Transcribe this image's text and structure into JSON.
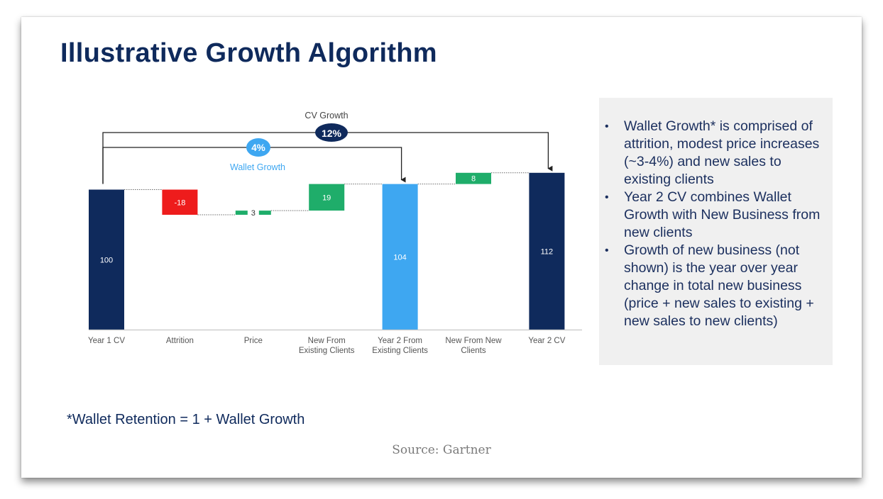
{
  "slide": {
    "title": "Illustrative Growth Algorithm",
    "footnote": "*Wallet Retention = 1 + Wallet Growth",
    "source": "Source: Gartner"
  },
  "notes": [
    "Wallet Growth* is comprised of attrition, modest price increases (~3-4%) and new sales to existing clients",
    "Year 2 CV combines Wallet Growth with New Business from new clients",
    "Growth of new business (not shown) is the year over year change in total new business (price + new sales to existing + new sales to new clients)"
  ],
  "colors": {
    "navy": "#0f2a5c",
    "light_blue": "#3ea7f1",
    "red": "#ee1c1c",
    "green": "#1fad6a",
    "note_bg": "#f0f0f0"
  },
  "chart_data": {
    "type": "bar",
    "subtype": "waterfall",
    "categories": [
      "Year 1 CV",
      "Attrition",
      "Price",
      "New From Existing Clients",
      "Year 2 From Existing Clients",
      "New From New Clients",
      "Year 2 CV"
    ],
    "values": [
      100,
      -18,
      3,
      19,
      104,
      8,
      112
    ],
    "labels": [
      "100",
      "-18",
      "3",
      "19",
      "104",
      "8",
      "112"
    ],
    "kinds": [
      "total",
      "delta",
      "delta",
      "delta",
      "total",
      "delta",
      "total"
    ],
    "colors": [
      "#0f2a5c",
      "#ee1c1c",
      "#1fad6a",
      "#1fad6a",
      "#3ea7f1",
      "#1fad6a",
      "#0f2a5c"
    ],
    "annotations": [
      {
        "label": "CV Growth",
        "value": "12%",
        "from": "Year 1 CV",
        "to": "Year 2 CV"
      },
      {
        "label": "Wallet Growth",
        "value": "4%",
        "from": "Year 1 CV",
        "to": "Year 2 From Existing Clients"
      }
    ],
    "title": "",
    "xlabel": "",
    "ylabel": "",
    "grid": false
  }
}
